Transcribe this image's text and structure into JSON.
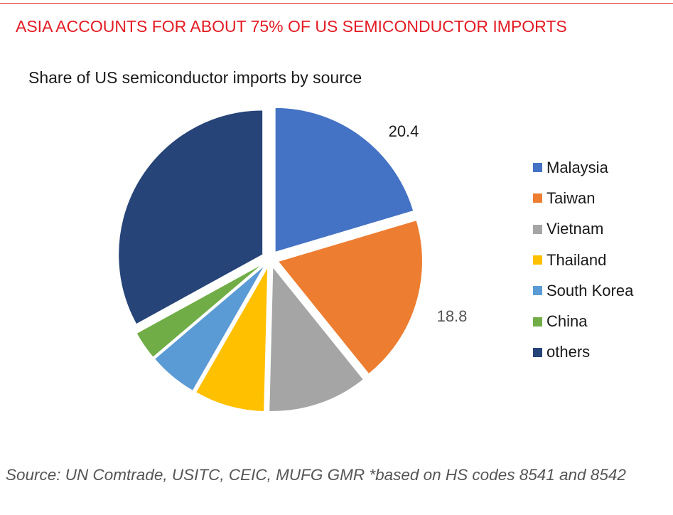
{
  "headline": "ASIA ACCOUNTS FOR ABOUT 75% OF US SEMICONDUCTOR IMPORTS",
  "source_note": "Source: UN Comtrade, USITC, CEIC, MUFG GMR *based on HS codes 8541 and 8542",
  "chart_data": {
    "type": "pie",
    "title": "Share of US semiconductor imports by source",
    "start_angle_deg": 0,
    "direction": "clockwise",
    "exploded": true,
    "legend_position": "right",
    "slices": [
      {
        "label": "Malaysia",
        "value": 20.4,
        "color": "#4472C4",
        "data_label": "20.4"
      },
      {
        "label": "Taiwan",
        "value": 18.8,
        "color": "#ED7D31",
        "data_label": "18.8"
      },
      {
        "label": "Vietnam",
        "value": 11.2,
        "color": "#A5A5A5",
        "data_label": ""
      },
      {
        "label": "Thailand",
        "value": 7.9,
        "color": "#FFC000",
        "data_label": ""
      },
      {
        "label": "South Korea",
        "value": 5.5,
        "color": "#5B9BD5",
        "data_label": ""
      },
      {
        "label": "China",
        "value": 3.2,
        "color": "#70AD47",
        "data_label": ""
      },
      {
        "label": "others",
        "value": 33.0,
        "color": "#264478",
        "data_label": ""
      }
    ]
  }
}
